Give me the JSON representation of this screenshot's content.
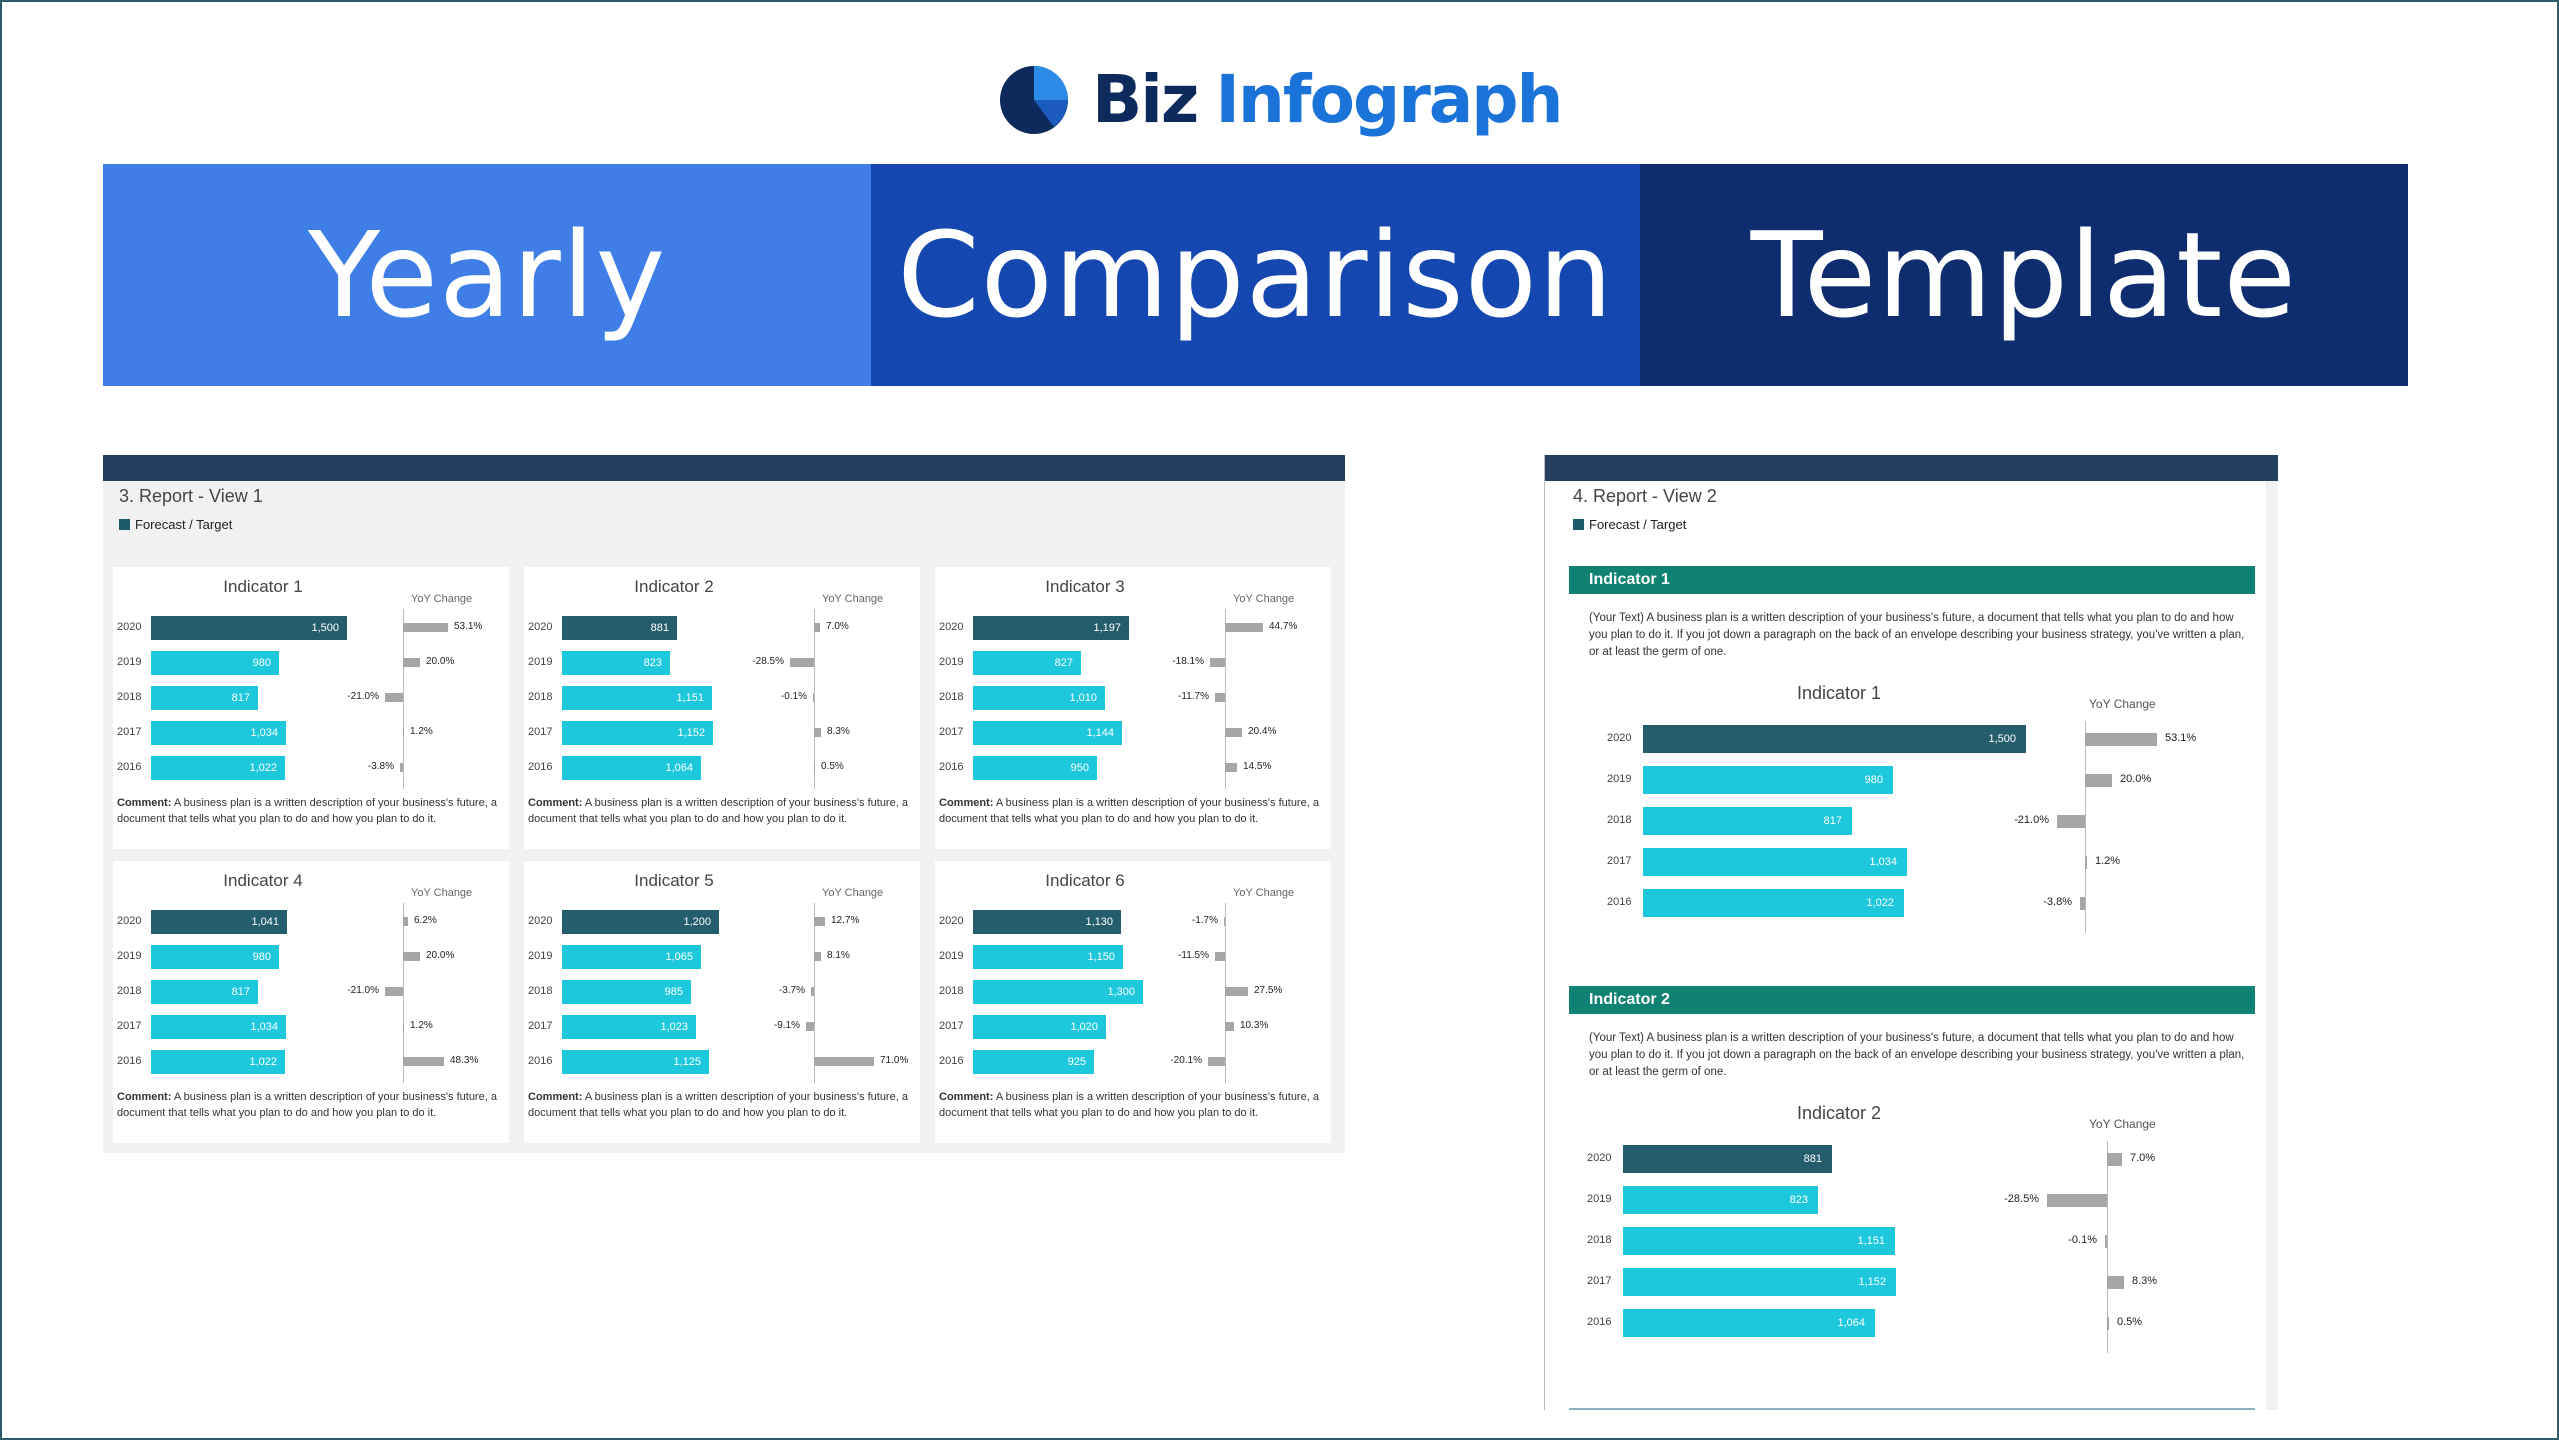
{
  "logo": {
    "part1": "Biz",
    "part2": "Infograph",
    "colors": {
      "dark": "#0d2a5c",
      "light": "#1a73d9"
    }
  },
  "banner": {
    "word1": "Yearly",
    "word2": "Comparison",
    "word3": "Template"
  },
  "view1": {
    "title": "3. Report - View 1",
    "legend": "Forecast / Target",
    "yoy_label": "YoY Change",
    "comment_label": "Comment:",
    "comment_text": " A business plan is a written description of your business's future, a document that tells what you plan to do and how you plan to do it.",
    "indicators": [
      {
        "title": "Indicator 1",
        "rows": [
          {
            "year": "2020",
            "value": 1500,
            "label": "1,500",
            "yoy": 53.1,
            "yoy_label": "53.1%"
          },
          {
            "year": "2019",
            "value": 980,
            "label": "980",
            "yoy": 20.0,
            "yoy_label": "20.0%"
          },
          {
            "year": "2018",
            "value": 817,
            "label": "817",
            "yoy": -21.0,
            "yoy_label": "-21.0%"
          },
          {
            "year": "2017",
            "value": 1034,
            "label": "1,034",
            "yoy": 1.2,
            "yoy_label": "1.2%"
          },
          {
            "year": "2016",
            "value": 1022,
            "label": "1,022",
            "yoy": -3.8,
            "yoy_label": "-3.8%"
          }
        ]
      },
      {
        "title": "Indicator 2",
        "rows": [
          {
            "year": "2020",
            "value": 881,
            "label": "881",
            "yoy": 7.0,
            "yoy_label": "7.0%"
          },
          {
            "year": "2019",
            "value": 823,
            "label": "823",
            "yoy": -28.5,
            "yoy_label": "-28.5%"
          },
          {
            "year": "2018",
            "value": 1151,
            "label": "1,151",
            "yoy": -0.1,
            "yoy_label": "-0.1%"
          },
          {
            "year": "2017",
            "value": 1152,
            "label": "1,152",
            "yoy": 8.3,
            "yoy_label": "8.3%"
          },
          {
            "year": "2016",
            "value": 1064,
            "label": "1,064",
            "yoy": 0.5,
            "yoy_label": "0.5%"
          }
        ]
      },
      {
        "title": "Indicator 3",
        "rows": [
          {
            "year": "2020",
            "value": 1197,
            "label": "1,197",
            "yoy": 44.7,
            "yoy_label": "44.7%"
          },
          {
            "year": "2019",
            "value": 827,
            "label": "827",
            "yoy": -18.1,
            "yoy_label": "-18.1%"
          },
          {
            "year": "2018",
            "value": 1010,
            "label": "1,010",
            "yoy": -11.7,
            "yoy_label": "-11.7%"
          },
          {
            "year": "2017",
            "value": 1144,
            "label": "1,144",
            "yoy": 20.4,
            "yoy_label": "20.4%"
          },
          {
            "year": "2016",
            "value": 950,
            "label": "950",
            "yoy": 14.5,
            "yoy_label": "14.5%"
          }
        ]
      },
      {
        "title": "Indicator 4",
        "rows": [
          {
            "year": "2020",
            "value": 1041,
            "label": "1,041",
            "yoy": 6.2,
            "yoy_label": "6.2%"
          },
          {
            "year": "2019",
            "value": 980,
            "label": "980",
            "yoy": 20.0,
            "yoy_label": "20.0%"
          },
          {
            "year": "2018",
            "value": 817,
            "label": "817",
            "yoy": -21.0,
            "yoy_label": "-21.0%"
          },
          {
            "year": "2017",
            "value": 1034,
            "label": "1,034",
            "yoy": 1.2,
            "yoy_label": "1.2%"
          },
          {
            "year": "2016",
            "value": 1022,
            "label": "1,022",
            "yoy": 48.3,
            "yoy_label": "48.3%"
          }
        ]
      },
      {
        "title": "Indicator 5",
        "rows": [
          {
            "year": "2020",
            "value": 1200,
            "label": "1,200",
            "yoy": 12.7,
            "yoy_label": "12.7%"
          },
          {
            "year": "2019",
            "value": 1065,
            "label": "1,065",
            "yoy": 8.1,
            "yoy_label": "8.1%"
          },
          {
            "year": "2018",
            "value": 985,
            "label": "985",
            "yoy": -3.7,
            "yoy_label": "-3.7%"
          },
          {
            "year": "2017",
            "value": 1023,
            "label": "1,023",
            "yoy": -9.1,
            "yoy_label": "-9.1%"
          },
          {
            "year": "2016",
            "value": 1125,
            "label": "1,125",
            "yoy": 71.0,
            "yoy_label": "71.0%"
          }
        ]
      },
      {
        "title": "Indicator 6",
        "rows": [
          {
            "year": "2020",
            "value": 1130,
            "label": "1,130",
            "yoy": -1.7,
            "yoy_label": "-1.7%"
          },
          {
            "year": "2019",
            "value": 1150,
            "label": "1,150",
            "yoy": -11.5,
            "yoy_label": "-11.5%"
          },
          {
            "year": "2018",
            "value": 1300,
            "label": "1,300",
            "yoy": 27.5,
            "yoy_label": "27.5%"
          },
          {
            "year": "2017",
            "value": 1020,
            "label": "1,020",
            "yoy": 10.3,
            "yoy_label": "10.3%"
          },
          {
            "year": "2016",
            "value": 925,
            "label": "925",
            "yoy": -20.1,
            "yoy_label": "-20.1%"
          }
        ]
      }
    ]
  },
  "view2": {
    "title": "4. Report - View 2",
    "legend": "Forecast / Target",
    "yoy_label": "YoY Change",
    "sections": [
      {
        "header": "Indicator 1",
        "text": "(Your Text) A business plan is a written description of your business's future, a document that tells what you plan to do and how you plan to do it. If you jot down a paragraph on the back of an envelope describing your business strategy, you've written a plan, or at least the germ of one.",
        "chart_title": "Indicator 1",
        "rows": [
          {
            "year": "2020",
            "value": 1500,
            "label": "1,500",
            "yoy": 53.1,
            "yoy_label": "53.1%"
          },
          {
            "year": "2019",
            "value": 980,
            "label": "980",
            "yoy": 20.0,
            "yoy_label": "20.0%"
          },
          {
            "year": "2018",
            "value": 817,
            "label": "817",
            "yoy": -21.0,
            "yoy_label": "-21.0%"
          },
          {
            "year": "2017",
            "value": 1034,
            "label": "1,034",
            "yoy": 1.2,
            "yoy_label": "1.2%"
          },
          {
            "year": "2016",
            "value": 1022,
            "label": "1,022",
            "yoy": -3.8,
            "yoy_label": "-3.8%"
          }
        ]
      },
      {
        "header": "Indicator 2",
        "text": "(Your Text) A business plan is a written description of your business's future, a document that tells what you plan to do and how you plan to do it. If you jot down a paragraph on the back of an envelope describing your business strategy, you've written a plan, or at least the germ of one.",
        "chart_title": "Indicator 2",
        "rows": [
          {
            "year": "2020",
            "value": 881,
            "label": "881",
            "yoy": 7.0,
            "yoy_label": "7.0%"
          },
          {
            "year": "2019",
            "value": 823,
            "label": "823",
            "yoy": -28.5,
            "yoy_label": "-28.5%"
          },
          {
            "year": "2018",
            "value": 1151,
            "label": "1,151",
            "yoy": -0.1,
            "yoy_label": "-0.1%"
          },
          {
            "year": "2017",
            "value": 1152,
            "label": "1,152",
            "yoy": 8.3,
            "yoy_label": "8.3%"
          },
          {
            "year": "2016",
            "value": 1064,
            "label": "1,064",
            "yoy": 0.5,
            "yoy_label": "0.5%"
          }
        ]
      }
    ]
  },
  "colors": {
    "bar_current": "#245d6c",
    "bar_prior": "#1dc8dc",
    "yoy_bar": "#a6a6a6",
    "section_header": "#0f8274",
    "report_topbar": "#243f5f"
  }
}
